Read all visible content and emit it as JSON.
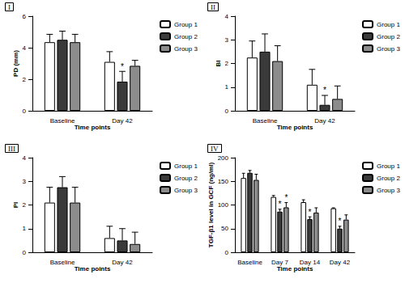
{
  "chart_data": [
    {
      "type": "bar",
      "panel_label": "I",
      "ylabel": "PD (mm)",
      "xlabel": "Time points",
      "categories": [
        "Baseline",
        "Day 42"
      ],
      "series": [
        {
          "name": "Group 1",
          "color": "#ffffff",
          "values": [
            4.35,
            3.1
          ],
          "errors": [
            0.5,
            0.65
          ],
          "annotations": [
            null,
            null
          ]
        },
        {
          "name": "Group 2",
          "color": "#3a3a3a",
          "values": [
            4.5,
            1.85
          ],
          "errors": [
            0.55,
            0.65
          ],
          "annotations": [
            null,
            "*"
          ]
        },
        {
          "name": "Group 3",
          "color": "#8c8c8c",
          "values": [
            4.35,
            2.85
          ],
          "errors": [
            0.5,
            0.35
          ],
          "annotations": [
            null,
            null
          ]
        }
      ],
      "ylim": [
        0,
        6
      ],
      "yticks": [
        0,
        2,
        4,
        6
      ],
      "grid": false,
      "legend": "right"
    },
    {
      "type": "bar",
      "panel_label": "II",
      "ylabel": "BI",
      "xlabel": "Time points",
      "categories": [
        "Baseline",
        "Day 42"
      ],
      "series": [
        {
          "name": "Group 1",
          "color": "#ffffff",
          "values": [
            2.25,
            1.1
          ],
          "errors": [
            0.7,
            0.65
          ],
          "annotations": [
            null,
            null
          ]
        },
        {
          "name": "Group 2",
          "color": "#3a3a3a",
          "values": [
            2.5,
            0.25
          ],
          "errors": [
            0.75,
            0.4
          ],
          "annotations": [
            null,
            "*"
          ]
        },
        {
          "name": "Group 3",
          "color": "#8c8c8c",
          "values": [
            2.1,
            0.5
          ],
          "errors": [
            0.65,
            0.55
          ],
          "annotations": [
            null,
            null
          ]
        }
      ],
      "ylim": [
        0,
        4
      ],
      "yticks": [
        0,
        1,
        2,
        3,
        4
      ],
      "grid": false,
      "legend": "right"
    },
    {
      "type": "bar",
      "panel_label": "III",
      "ylabel": "PI",
      "xlabel": "Time points",
      "categories": [
        "Baseline",
        "Day 42"
      ],
      "series": [
        {
          "name": "Group 1",
          "color": "#ffffff",
          "values": [
            2.1,
            0.6
          ],
          "errors": [
            0.65,
            0.5
          ],
          "annotations": [
            null,
            null
          ]
        },
        {
          "name": "Group 2",
          "color": "#3a3a3a",
          "values": [
            2.75,
            0.5
          ],
          "errors": [
            0.45,
            0.5
          ],
          "annotations": [
            null,
            null
          ]
        },
        {
          "name": "Group 3",
          "color": "#8c8c8c",
          "values": [
            2.1,
            0.35
          ],
          "errors": [
            0.65,
            0.5
          ],
          "annotations": [
            null,
            null
          ]
        }
      ],
      "ylim": [
        0,
        4
      ],
      "yticks": [
        0,
        1,
        2,
        3,
        4
      ],
      "grid": false,
      "legend": "right"
    },
    {
      "type": "bar",
      "panel_label": "IV",
      "ylabel": "TGF-β1 level in GCF (ng/ml)",
      "xlabel": "Time points",
      "categories": [
        "Baseline",
        "Day 7",
        "Day 14",
        "Day 42"
      ],
      "series": [
        {
          "name": "Group 1",
          "color": "#ffffff",
          "values": [
            157,
            117,
            106,
            93
          ],
          "errors": [
            10,
            3,
            5,
            1
          ],
          "annotations": [
            null,
            null,
            null,
            null
          ]
        },
        {
          "name": "Group 2",
          "color": "#3a3a3a",
          "values": [
            168,
            86,
            70,
            50
          ],
          "errors": [
            5,
            5,
            5,
            5
          ],
          "annotations": [
            null,
            "*",
            "*",
            "*"
          ]
        },
        {
          "name": "Group 3",
          "color": "#8c8c8c",
          "values": [
            153,
            95,
            84,
            69
          ],
          "errors": [
            12,
            10,
            10,
            10
          ],
          "annotations": [
            null,
            "*",
            null,
            null
          ]
        }
      ],
      "ylim": [
        0,
        200
      ],
      "yticks": [
        0,
        50,
        100,
        150,
        200
      ],
      "grid": false,
      "legend": "right"
    }
  ]
}
